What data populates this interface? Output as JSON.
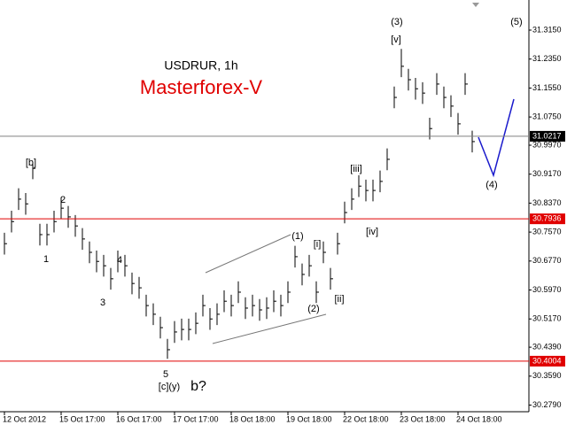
{
  "chart_data": {
    "type": "ohlc",
    "symbol": "USDRUR, 1h",
    "title": "Masterforex-V",
    "categories": [
      "12 Oct 2012",
      null,
      null,
      null,
      null,
      null,
      null,
      null,
      "15 Oct 17:00",
      null,
      null,
      null,
      null,
      null,
      null,
      null,
      "16 Oct 17:00",
      null,
      null,
      null,
      null,
      null,
      null,
      null,
      "17 Oct 17:00",
      null,
      null,
      null,
      null,
      null,
      null,
      null,
      "18 Oct 18:00",
      null,
      null,
      null,
      null,
      null,
      null,
      null,
      "19 Oct 18:00",
      null,
      null,
      null,
      null,
      null,
      null,
      null,
      "22 Oct 18:00",
      null,
      null,
      null,
      null,
      null,
      null,
      null,
      "23 Oct 18:00",
      null,
      null,
      null,
      null,
      null,
      null,
      null,
      "24 Oct 18:00",
      null,
      null
    ],
    "high": [
      30.755,
      30.816,
      30.878,
      30.865,
      30.945,
      30.78,
      30.78,
      30.816,
      30.853,
      30.829,
      30.804,
      30.768,
      30.731,
      30.706,
      30.694,
      30.658,
      30.706,
      30.694,
      30.645,
      30.633,
      30.584,
      30.56,
      30.523,
      30.462,
      30.511,
      30.518,
      30.518,
      30.535,
      30.584,
      30.547,
      30.56,
      30.596,
      30.584,
      30.621,
      30.577,
      30.584,
      30.572,
      30.577,
      30.596,
      30.584,
      30.621,
      30.719,
      30.67,
      30.694,
      30.621,
      30.731,
      30.658,
      30.755,
      30.841,
      30.878,
      30.914,
      30.902,
      30.902,
      30.927,
      30.988,
      31.159,
      31.263,
      31.208,
      31.183,
      31.171,
      31.073,
      31.196,
      31.159,
      31.135,
      31.086,
      31.196,
      31.037
    ],
    "low": [
      30.695,
      30.756,
      30.818,
      30.805,
      30.903,
      30.72,
      30.72,
      30.756,
      30.793,
      30.769,
      30.744,
      30.708,
      30.671,
      30.646,
      30.634,
      30.598,
      30.646,
      30.634,
      30.585,
      30.573,
      30.524,
      30.5,
      30.463,
      30.407,
      30.451,
      30.458,
      30.458,
      30.475,
      30.524,
      30.487,
      30.5,
      30.536,
      30.524,
      30.561,
      30.517,
      30.524,
      30.512,
      30.517,
      30.536,
      30.524,
      30.561,
      30.659,
      30.61,
      30.634,
      30.561,
      30.671,
      30.598,
      30.695,
      30.781,
      30.818,
      30.854,
      30.842,
      30.842,
      30.867,
      30.928,
      31.099,
      31.185,
      31.148,
      31.123,
      31.111,
      31.013,
      31.136,
      31.099,
      31.075,
      31.026,
      31.136,
      30.977
    ],
    "close": [
      30.725,
      30.786,
      30.848,
      30.835,
      30.933,
      30.75,
      30.75,
      30.786,
      30.823,
      30.799,
      30.774,
      30.738,
      30.701,
      30.676,
      30.664,
      30.628,
      30.676,
      30.664,
      30.615,
      30.603,
      30.554,
      30.53,
      30.493,
      30.432,
      30.481,
      30.488,
      30.488,
      30.505,
      30.554,
      30.517,
      30.53,
      30.566,
      30.554,
      30.591,
      30.547,
      30.554,
      30.542,
      30.547,
      30.566,
      30.554,
      30.591,
      30.689,
      30.64,
      30.664,
      30.591,
      30.701,
      30.628,
      30.725,
      30.811,
      30.848,
      30.884,
      30.872,
      30.872,
      30.897,
      30.958,
      31.129,
      31.215,
      31.178,
      31.153,
      31.141,
      31.043,
      31.166,
      31.129,
      31.105,
      31.056,
      31.166,
      31.007
    ],
    "color": "#000000",
    "ylim": [
      30.2607,
      31.3982
    ],
    "yticks": [
      {
        "value": 31.315,
        "label": "31.3150"
      },
      {
        "value": 31.235,
        "label": "31.2350"
      },
      {
        "value": 31.155,
        "label": "31.1550"
      },
      {
        "value": 31.075,
        "label": "31.0750"
      },
      {
        "value": 30.997,
        "label": "30.9970"
      },
      {
        "value": 30.917,
        "label": "30.9170"
      },
      {
        "value": 30.837,
        "label": "30.8370"
      },
      {
        "value": 30.757,
        "label": "30.7570"
      },
      {
        "value": 30.677,
        "label": "30.6770"
      },
      {
        "value": 30.597,
        "label": "30.5970"
      },
      {
        "value": 30.517,
        "label": "30.5170"
      },
      {
        "value": 30.439,
        "label": "30.4390"
      },
      {
        "value": 30.359,
        "label": "30.3590"
      },
      {
        "value": 30.279,
        "label": "30.2790"
      }
    ],
    "price_lines": [
      {
        "value": 31.0217,
        "color": "#808080",
        "tag_color": "#000000"
      },
      {
        "value": 30.7936,
        "color": "#e00000",
        "tag_color": "#e00000"
      },
      {
        "value": 30.4004,
        "color": "#e00000",
        "tag_color": "#e00000"
      }
    ],
    "annotations": [
      "[b]",
      "2",
      "1",
      "4",
      "3",
      "5",
      "[c](y)",
      "b?",
      "(1)",
      "[i]",
      "(2)",
      "[ii]",
      "[iii]",
      "[iv]",
      "(3)",
      "[v]",
      "(4)",
      "(5)"
    ]
  }
}
